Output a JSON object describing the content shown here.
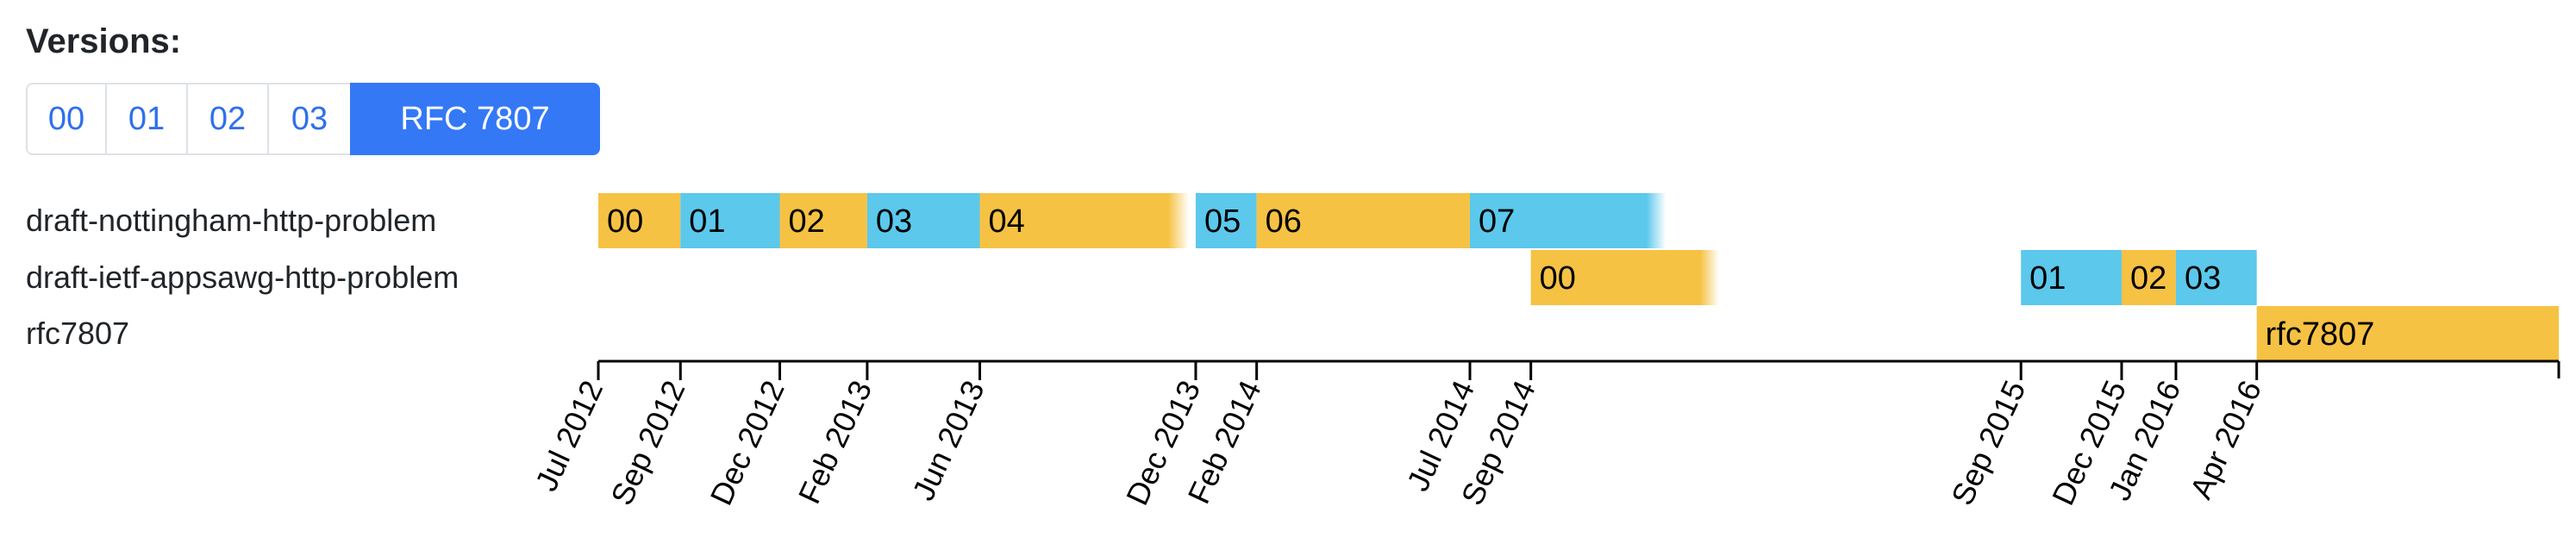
{
  "heading": "Versions:",
  "versions": [
    {
      "label": "00",
      "active": false
    },
    {
      "label": "01",
      "active": false
    },
    {
      "label": "02",
      "active": false
    },
    {
      "label": "03",
      "active": false
    },
    {
      "label": "RFC 7807",
      "active": true
    }
  ],
  "colors": {
    "odd": "#5bc8ec",
    "even": "#f6c244",
    "axis": "#000000",
    "text": "#212529",
    "link": "#2f6fed",
    "active": "#3478f6"
  },
  "timeline": {
    "rows": [
      {
        "name": "draft-nottingham-http-problem",
        "segments": [
          {
            "label": "00",
            "start": "2012-07-01",
            "end": "2012-09-01",
            "color": "even"
          },
          {
            "label": "01",
            "start": "2012-09-01",
            "end": "2012-11-15",
            "color": "odd"
          },
          {
            "label": "02",
            "start": "2012-11-15",
            "end": "2013-01-20",
            "color": "even"
          },
          {
            "label": "03",
            "start": "2013-01-20",
            "end": "2013-04-15",
            "color": "odd"
          },
          {
            "label": "04",
            "start": "2013-04-15",
            "end": "2013-09-20",
            "color": "even",
            "fade": true
          },
          {
            "label": "05",
            "start": "2013-09-25",
            "end": "2013-11-10",
            "color": "odd"
          },
          {
            "label": "06",
            "start": "2013-11-10",
            "end": "2014-04-20",
            "color": "even"
          },
          {
            "label": "07",
            "start": "2014-04-20",
            "end": "2014-09-15",
            "color": "odd",
            "fade": true
          }
        ]
      },
      {
        "name": "draft-ietf-appsawg-http-problem",
        "segments": [
          {
            "label": "00",
            "start": "2014-06-05",
            "end": "2014-10-25",
            "color": "even",
            "fade": true
          },
          {
            "label": "01",
            "start": "2015-06-10",
            "end": "2015-08-25",
            "color": "odd"
          },
          {
            "label": "02",
            "start": "2015-08-25",
            "end": "2015-10-05",
            "color": "even"
          },
          {
            "label": "03",
            "start": "2015-10-05",
            "end": "2015-12-05",
            "color": "odd"
          }
        ]
      },
      {
        "name": "rfc7807",
        "segments": [
          {
            "label": "rfc7807",
            "start": "2015-12-05",
            "end": "2016-07-20",
            "color": "even"
          }
        ]
      }
    ],
    "ticks": [
      {
        "label": "Jul 2012",
        "date": "2012-07-01"
      },
      {
        "label": "Sep 2012",
        "date": "2012-09-01"
      },
      {
        "label": "Dec 2012",
        "date": "2012-11-15"
      },
      {
        "label": "Feb 2013",
        "date": "2013-01-20"
      },
      {
        "label": "Jun 2013",
        "date": "2013-04-15"
      },
      {
        "label": "Dec 2013",
        "date": "2013-09-25"
      },
      {
        "label": "Feb 2014",
        "date": "2013-11-10"
      },
      {
        "label": "Jul 2014",
        "date": "2014-04-20"
      },
      {
        "label": "Sep 2014",
        "date": "2014-06-05"
      },
      {
        "label": "Sep 2015",
        "date": "2015-06-10"
      },
      {
        "label": "Dec 2015",
        "date": "2015-08-25"
      },
      {
        "label": "Jan 2016",
        "date": "2015-10-05"
      },
      {
        "label": "Apr 2016",
        "date": "2015-12-05"
      }
    ],
    "range": [
      "2012-07-01",
      "2016-07-20"
    ]
  }
}
